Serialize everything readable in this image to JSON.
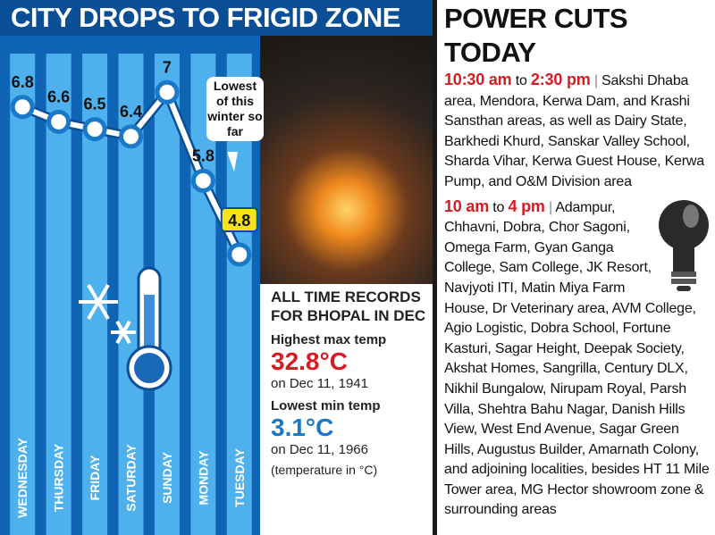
{
  "chart_data": {
    "type": "line",
    "title": "CITY DROPS TO FRIGID ZONE",
    "categories": [
      "WEDNESDAY",
      "THURSDAY",
      "FRIDAY",
      "SATURDAY",
      "SUNDAY",
      "MONDAY",
      "TUESDAY"
    ],
    "values": [
      6.8,
      6.6,
      6.5,
      6.4,
      7.0,
      5.8,
      4.8
    ],
    "color": "#ffffff",
    "ylim": [
      4.0,
      7.5
    ],
    "annotation": "Lowest of this winter so far"
  },
  "records": {
    "heading": "ALL TIME RECORDS FOR BHOPAL IN DEC",
    "items": [
      {
        "label": "Highest max temp",
        "value": "32.8°C",
        "date": "on Dec 11, 1941"
      },
      {
        "label": "Lowest min temp",
        "value": "3.1°C",
        "date": "on Dec 11, 1966"
      }
    ],
    "note": "(temperature in °C)"
  },
  "power_cuts": {
    "title": "POWER CUTS TODAY",
    "schedules": [
      {
        "from": "10:30 am",
        "connector": "to",
        "to": "2:30 pm",
        "areas": "Sakshi Dhaba area, Mendora, Kerwa Dam, and Krashi Sansthan areas, as well as Dairy State, Barkhedi Khurd, Sanskar Valley School, Sharda Vihar, Kerwa Guest House, Kerwa Pump, and O&M Division area"
      },
      {
        "from": "10 am",
        "connector": "to",
        "to": "4 pm",
        "areas": "Adampur, Chhavni, Dobra, Chor Sagoni, Omega Farm, Gyan Ganga College, Sam College, JK Resort, Navjyoti ITI, Matin Miya Farm House, Dr Veterinary area, AVM College, Agio Logistic, Dobra School, Fortune Kasturi, Sagar Height, Deepak Society, Akshat Homes, Sangrilla, Century DLX, Nikhil Bungalow, Nirupam Royal, Parsh Villa, Shehtra Bahu Nagar, Danish Hills View, West End Avenue, Sagar Green Hills, Augustus Builder, Amarnath Colony, and adjoining localities, besides HT 11 Mile Tower area, MG Hector showroom zone & surrounding areas"
      }
    ]
  }
}
